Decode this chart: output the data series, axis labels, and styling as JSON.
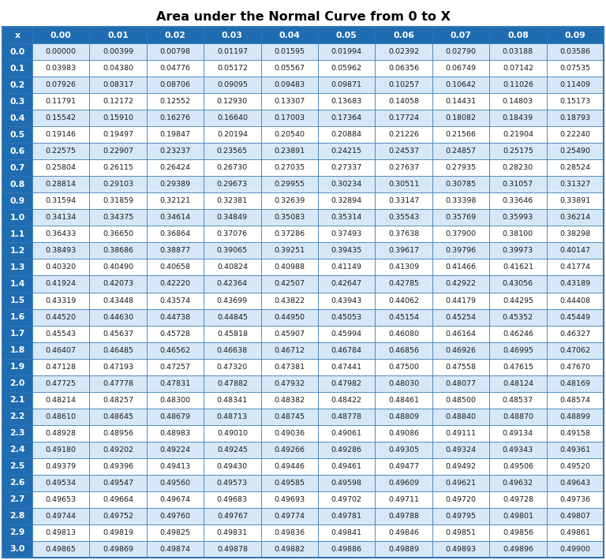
{
  "title": "Area under the Normal Curve from 0 to X",
  "col_headers": [
    "x",
    "0.00",
    "0.01",
    "0.02",
    "0.03",
    "0.04",
    "0.05",
    "0.06",
    "0.07",
    "0.08",
    "0.09"
  ],
  "rows": [
    [
      "0.0",
      "0.00000",
      "0.00399",
      "0.00798",
      "0.01197",
      "0.01595",
      "0.01994",
      "0.02392",
      "0.02790",
      "0.03188",
      "0.03586"
    ],
    [
      "0.1",
      "0.03983",
      "0.04380",
      "0.04776",
      "0.05172",
      "0.05567",
      "0.05962",
      "0.06356",
      "0.06749",
      "0.07142",
      "0.07535"
    ],
    [
      "0.2",
      "0.07926",
      "0.08317",
      "0.08706",
      "0.09095",
      "0.09483",
      "0.09871",
      "0.10257",
      "0.10642",
      "0.11026",
      "0.11409"
    ],
    [
      "0.3",
      "0.11791",
      "0.12172",
      "0.12552",
      "0.12930",
      "0.13307",
      "0.13683",
      "0.14058",
      "0.14431",
      "0.14803",
      "0.15173"
    ],
    [
      "0.4",
      "0.15542",
      "0.15910",
      "0.16276",
      "0.16640",
      "0.17003",
      "0.17364",
      "0.17724",
      "0.18082",
      "0.18439",
      "0.18793"
    ],
    [
      "0.5",
      "0.19146",
      "0.19497",
      "0.19847",
      "0.20194",
      "0.20540",
      "0.20884",
      "0.21226",
      "0.21566",
      "0.21904",
      "0.22240"
    ],
    [
      "0.6",
      "0.22575",
      "0.22907",
      "0.23237",
      "0.23565",
      "0.23891",
      "0.24215",
      "0.24537",
      "0.24857",
      "0.25175",
      "0.25490"
    ],
    [
      "0.7",
      "0.25804",
      "0.26115",
      "0.26424",
      "0.26730",
      "0.27035",
      "0.27337",
      "0.27637",
      "0.27935",
      "0.28230",
      "0.28524"
    ],
    [
      "0.8",
      "0.28814",
      "0.29103",
      "0.29389",
      "0.29673",
      "0.29955",
      "0.30234",
      "0.30511",
      "0.30785",
      "0.31057",
      "0.31327"
    ],
    [
      "0.9",
      "0.31594",
      "0.31859",
      "0.32121",
      "0.32381",
      "0.32639",
      "0.32894",
      "0.33147",
      "0.33398",
      "0.33646",
      "0.33891"
    ],
    [
      "1.0",
      "0.34134",
      "0.34375",
      "0.34614",
      "0.34849",
      "0.35083",
      "0.35314",
      "0.35543",
      "0.35769",
      "0.35993",
      "0.36214"
    ],
    [
      "1.1",
      "0.36433",
      "0.36650",
      "0.36864",
      "0.37076",
      "0.37286",
      "0.37493",
      "0.37638",
      "0.37900",
      "0.38100",
      "0.38298"
    ],
    [
      "1.2",
      "0.38493",
      "0.38686",
      "0.38877",
      "0.39065",
      "0.39251",
      "0.39435",
      "0.39617",
      "0.39796",
      "0.39973",
      "0.40147"
    ],
    [
      "1.3",
      "0.40320",
      "0.40490",
      "0.40658",
      "0.40824",
      "0.40988",
      "0.41149",
      "0.41309",
      "0.41466",
      "0.41621",
      "0.41774"
    ],
    [
      "1.4",
      "0.41924",
      "0.42073",
      "0.42220",
      "0.42364",
      "0.42507",
      "0.42647",
      "0.42785",
      "0.42922",
      "0.43056",
      "0.43189"
    ],
    [
      "1.5",
      "0.43319",
      "0.43448",
      "0.43574",
      "0.43699",
      "0.43822",
      "0.43943",
      "0.44062",
      "0.44179",
      "0.44295",
      "0.44408"
    ],
    [
      "1.6",
      "0.44520",
      "0.44630",
      "0.44738",
      "0.44845",
      "0.44950",
      "0.45053",
      "0.45154",
      "0.45254",
      "0.45352",
      "0.45449"
    ],
    [
      "1.7",
      "0.45543",
      "0.45637",
      "0.45728",
      "0.45818",
      "0.45907",
      "0.45994",
      "0.46080",
      "0.46164",
      "0.46246",
      "0.46327"
    ],
    [
      "1.8",
      "0.46407",
      "0.46485",
      "0.46562",
      "0.46638",
      "0.46712",
      "0.46784",
      "0.46856",
      "0.46926",
      "0.46995",
      "0.47062"
    ],
    [
      "1.9",
      "0.47128",
      "0.47193",
      "0.47257",
      "0.47320",
      "0.47381",
      "0.47441",
      "0.47500",
      "0.47558",
      "0.47615",
      "0.47670"
    ],
    [
      "2.0",
      "0.47725",
      "0.47778",
      "0.47831",
      "0.47882",
      "0.47932",
      "0.47982",
      "0.48030",
      "0.48077",
      "0.48124",
      "0.48169"
    ],
    [
      "2.1",
      "0.48214",
      "0.48257",
      "0.48300",
      "0.48341",
      "0.48382",
      "0.48422",
      "0.48461",
      "0.48500",
      "0.48537",
      "0.48574"
    ],
    [
      "2.2",
      "0.48610",
      "0.48645",
      "0.48679",
      "0.48713",
      "0.48745",
      "0.48778",
      "0.48809",
      "0.48840",
      "0.48870",
      "0.48899"
    ],
    [
      "2.3",
      "0.48928",
      "0.48956",
      "0.48983",
      "0.49010",
      "0.49036",
      "0.49061",
      "0.49086",
      "0.49111",
      "0.49134",
      "0.49158"
    ],
    [
      "2.4",
      "0.49180",
      "0.49202",
      "0.49224",
      "0.49245",
      "0.49266",
      "0.49286",
      "0.49305",
      "0.49324",
      "0.49343",
      "0.49361"
    ],
    [
      "2.5",
      "0.49379",
      "0.49396",
      "0.49413",
      "0.49430",
      "0.49446",
      "0.49461",
      "0.49477",
      "0.49492",
      "0.49506",
      "0.49520"
    ],
    [
      "2.6",
      "0.49534",
      "0.49547",
      "0.49560",
      "0.49573",
      "0.49585",
      "0.49598",
      "0.49609",
      "0.49621",
      "0.49632",
      "0.49643"
    ],
    [
      "2.7",
      "0.49653",
      "0.49664",
      "0.49674",
      "0.49683",
      "0.49693",
      "0.49702",
      "0.49711",
      "0.49720",
      "0.49728",
      "0.49736"
    ],
    [
      "2.8",
      "0.49744",
      "0.49752",
      "0.49760",
      "0.49767",
      "0.49774",
      "0.49781",
      "0.49788",
      "0.49795",
      "0.49801",
      "0.49807"
    ],
    [
      "2.9",
      "0.49813",
      "0.49819",
      "0.49825",
      "0.49831",
      "0.49836",
      "0.49841",
      "0.49846",
      "0.49851",
      "0.49856",
      "0.49861"
    ],
    [
      "3.0",
      "0.49865",
      "0.49869",
      "0.49874",
      "0.49878",
      "0.49882",
      "0.49886",
      "0.49889",
      "0.49893",
      "0.49896",
      "0.49900"
    ]
  ],
  "title_fontsize": 11.5,
  "header_bg_color": "#1F6CB0",
  "header_text_color": "#FFFFFF",
  "row_bg_even": "#D6E8F7",
  "row_bg_odd": "#FFFFFF",
  "first_col_bg": "#1F6CB0",
  "first_col_text_color": "#FFFFFF",
  "text_color": "#1A1A1A",
  "cell_fontsize": 6.8,
  "header_fontsize": 7.8,
  "row_label_fontsize": 7.8,
  "border_color": "#2E75B6"
}
